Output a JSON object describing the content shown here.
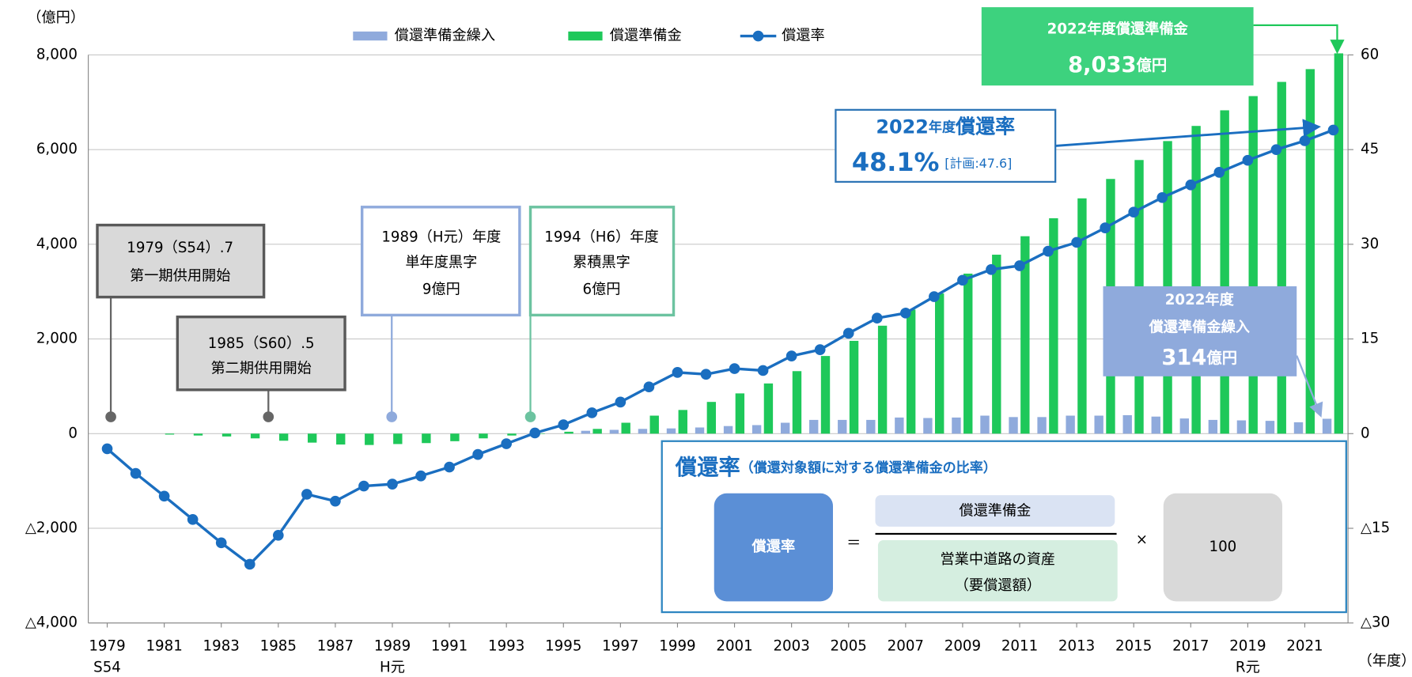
{
  "chart_data": {
    "type": "bar_line",
    "y_unit": "（億円）",
    "x_unit": "（年度）",
    "x": [
      1979,
      1980,
      1981,
      1982,
      1983,
      1984,
      1985,
      1986,
      1987,
      1988,
      1989,
      1990,
      1991,
      1992,
      1993,
      1994,
      1995,
      1996,
      1997,
      1998,
      1999,
      2000,
      2001,
      2002,
      2003,
      2004,
      2005,
      2006,
      2007,
      2008,
      2009,
      2010,
      2011,
      2012,
      2013,
      2014,
      2015,
      2016,
      2017,
      2018,
      2019,
      2020,
      2021,
      2022
    ],
    "series": [
      {
        "name": "償還準備金繰入",
        "type": "bar",
        "color": "#8faadc",
        "values": [
          null,
          null,
          null,
          null,
          null,
          null,
          null,
          null,
          null,
          null,
          null,
          null,
          null,
          null,
          null,
          null,
          null,
          60,
          80,
          100,
          110,
          130,
          160,
          180,
          230,
          290,
          290,
          290,
          340,
          330,
          340,
          380,
          350,
          350,
          380,
          380,
          390,
          360,
          320,
          290,
          280,
          270,
          240,
          314
        ]
      },
      {
        "name": "償還準備金",
        "type": "bar",
        "color": "#1ec85a",
        "values": [
          null,
          null,
          -20,
          -40,
          -60,
          -100,
          -150,
          -190,
          -230,
          -240,
          -220,
          -200,
          -160,
          -100,
          -40,
          6,
          40,
          100,
          230,
          380,
          500,
          670,
          850,
          1060,
          1320,
          1640,
          1960,
          2280,
          2620,
          2960,
          3380,
          3780,
          4170,
          4550,
          4970,
          5380,
          5780,
          6180,
          6500,
          6830,
          7130,
          7430,
          7700,
          8033
        ]
      },
      {
        "name": "償還率",
        "type": "line",
        "axis": "y2",
        "color": "#1a6ec0",
        "values": [
          -2.4,
          -6.3,
          -9.9,
          -13.6,
          -17.3,
          -20.7,
          -16.1,
          -9.6,
          -10.7,
          -8.3,
          -8.0,
          -6.7,
          -5.3,
          -3.3,
          -1.6,
          0.1,
          1.4,
          3.3,
          5.0,
          7.4,
          9.7,
          9.4,
          10.3,
          10.0,
          12.3,
          13.3,
          15.9,
          18.3,
          19.1,
          21.7,
          24.3,
          26.0,
          26.6,
          28.9,
          30.3,
          32.6,
          35.1,
          37.4,
          39.4,
          41.4,
          43.3,
          45.0,
          46.4,
          48.1
        ]
      }
    ],
    "ylim": [
      -4000,
      8000
    ],
    "yticks": [
      {
        "value": -4000,
        "label": "△4,000"
      },
      {
        "value": -2000,
        "label": "△2,000"
      },
      0,
      {
        "value": 2000,
        "label": "2,000"
      },
      {
        "value": 4000,
        "label": "4,000"
      },
      {
        "value": 6000,
        "label": "6,000"
      },
      {
        "value": 8000,
        "label": "8,000"
      }
    ],
    "y2lim": [
      -30,
      60
    ],
    "y2ticks": [
      {
        "value": -30,
        "label": "△30"
      },
      {
        "value": -15,
        "label": "△15"
      },
      0,
      15,
      30,
      45,
      60
    ],
    "xticks": [
      1979,
      1981,
      1983,
      1985,
      1987,
      1989,
      1991,
      1993,
      1995,
      1997,
      1999,
      2001,
      2003,
      2005,
      2007,
      2009,
      2011,
      2013,
      2015,
      2017,
      2019,
      2021
    ],
    "xtick_sublabels": [
      {
        "value": 1979,
        "label": "S54"
      },
      {
        "value": 1989,
        "label": "H元"
      },
      {
        "value": 2019,
        "label": "R元"
      }
    ],
    "grid": true,
    "legend": "top",
    "annotations": {
      "open1": [
        "1979（S54）.7",
        "第一期供用開始"
      ],
      "open2": [
        "1985（S60）.5",
        "第二期供用開始"
      ],
      "surplus1": [
        "1989（H元）年度",
        "単年度黒字",
        "9億円"
      ],
      "surplus2": [
        "1994（H6）年度",
        "累積黒字",
        "6億円"
      ],
      "reserve2022": {
        "title": "2022年度償還準備金",
        "number": "8,033",
        "unit": "億円"
      },
      "rate2022": {
        "year": "2022",
        "nendo": "年度",
        "title": "償還率",
        "value": "48.1%",
        "plan": "[計画:47.6]"
      },
      "inflow2022": {
        "year": "2022年度",
        "title": "償還準備金繰入",
        "number": "314",
        "unit": "億円"
      }
    },
    "formula": {
      "title": "償還率",
      "subtitle": "（償還対象額に対する償還準備金の比率）",
      "lhs": "償還率",
      "equals": "＝",
      "numerator": "償還準備金",
      "denominator": [
        "営業中道路の資産",
        "（要償還額）"
      ],
      "times": "×",
      "factor": "100"
    }
  }
}
